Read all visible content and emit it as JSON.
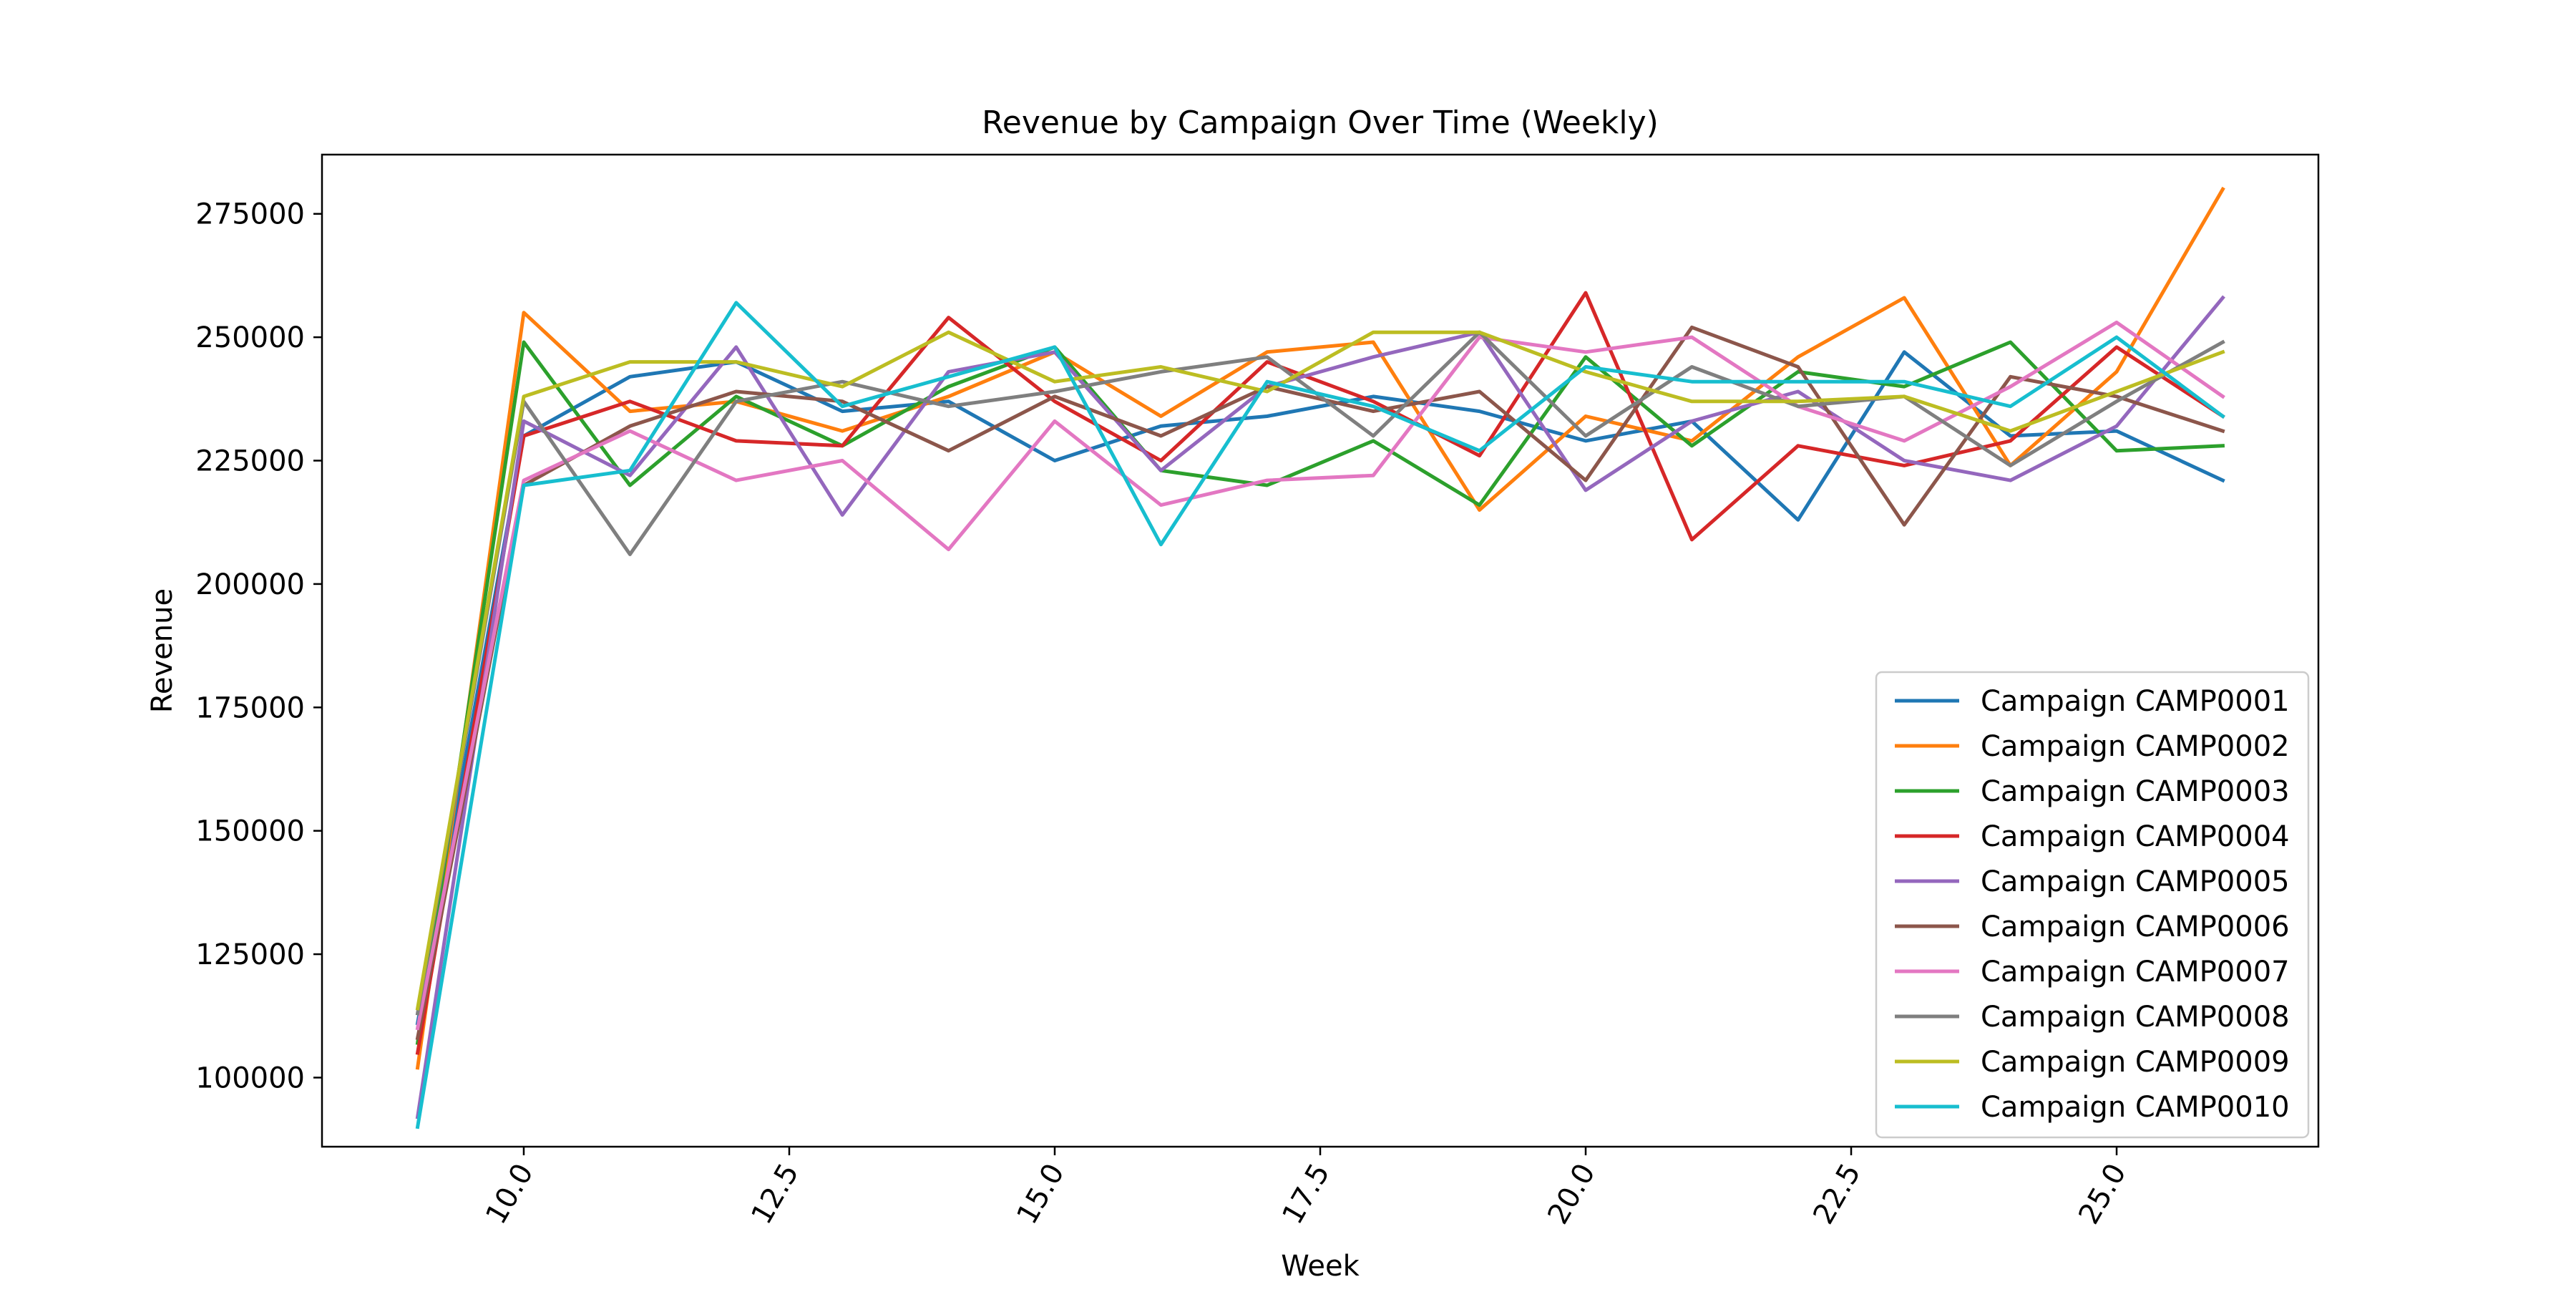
{
  "chart_data": {
    "type": "line",
    "title": "Revenue by Campaign Over Time (Weekly)",
    "xlabel": "Week",
    "ylabel": "Revenue",
    "xlim": [
      8.1,
      26.9
    ],
    "ylim": [
      86000,
      287000
    ],
    "x_ticks": [
      10.0,
      12.5,
      15.0,
      17.5,
      20.0,
      22.5,
      25.0
    ],
    "x_tick_labels": [
      "10.0",
      "12.5",
      "15.0",
      "17.5",
      "20.0",
      "22.5",
      "25.0"
    ],
    "y_ticks": [
      100000,
      125000,
      150000,
      175000,
      200000,
      225000,
      250000,
      275000
    ],
    "y_tick_labels": [
      "100000",
      "125000",
      "150000",
      "175000",
      "200000",
      "225000",
      "250000",
      "275000"
    ],
    "grid": false,
    "legend_position": "lower-right",
    "x": [
      9,
      10,
      11,
      12,
      13,
      14,
      15,
      16,
      17,
      18,
      19,
      20,
      21,
      22,
      23,
      24,
      25,
      26
    ],
    "series": [
      {
        "name": "Campaign CAMP0001",
        "color": "#1f77b4",
        "values": [
          111000,
          230000,
          242000,
          245000,
          235000,
          237000,
          225000,
          232000,
          234000,
          238000,
          235000,
          229000,
          233000,
          213000,
          247000,
          230000,
          231000,
          221000
        ]
      },
      {
        "name": "Campaign CAMP0002",
        "color": "#ff7f0e",
        "values": [
          102000,
          255000,
          235000,
          237000,
          231000,
          238000,
          247000,
          234000,
          247000,
          249000,
          215000,
          234000,
          229000,
          246000,
          258000,
          224000,
          243000,
          280000
        ]
      },
      {
        "name": "Campaign CAMP0003",
        "color": "#2ca02c",
        "values": [
          107000,
          249000,
          220000,
          238000,
          228000,
          240000,
          248000,
          223000,
          220000,
          229000,
          216000,
          246000,
          228000,
          243000,
          240000,
          249000,
          227000,
          228000
        ]
      },
      {
        "name": "Campaign CAMP0004",
        "color": "#d62728",
        "values": [
          105000,
          230000,
          237000,
          229000,
          228000,
          254000,
          237000,
          225000,
          245000,
          237000,
          226000,
          259000,
          209000,
          228000,
          224000,
          229000,
          248000,
          234000
        ]
      },
      {
        "name": "Campaign CAMP0005",
        "color": "#9467bd",
        "values": [
          92000,
          233000,
          222000,
          248000,
          214000,
          243000,
          247000,
          223000,
          240000,
          246000,
          251000,
          219000,
          233000,
          239000,
          225000,
          221000,
          232000,
          258000
        ]
      },
      {
        "name": "Campaign CAMP0006",
        "color": "#8c564b",
        "values": [
          108000,
          220000,
          232000,
          239000,
          237000,
          227000,
          238000,
          230000,
          240000,
          235000,
          239000,
          221000,
          252000,
          244000,
          212000,
          242000,
          238000,
          231000
        ]
      },
      {
        "name": "Campaign CAMP0007",
        "color": "#e377c2",
        "values": [
          110000,
          221000,
          231000,
          221000,
          225000,
          207000,
          233000,
          216000,
          221000,
          222000,
          250000,
          247000,
          250000,
          236000,
          229000,
          240000,
          253000,
          238000
        ]
      },
      {
        "name": "Campaign CAMP0008",
        "color": "#7f7f7f",
        "values": [
          113000,
          237000,
          206000,
          237000,
          241000,
          236000,
          239000,
          243000,
          246000,
          230000,
          251000,
          230000,
          244000,
          236000,
          238000,
          224000,
          237000,
          249000
        ]
      },
      {
        "name": "Campaign CAMP0009",
        "color": "#bcbd22",
        "values": [
          114000,
          238000,
          245000,
          245000,
          240000,
          251000,
          241000,
          244000,
          239000,
          251000,
          251000,
          243000,
          237000,
          237000,
          238000,
          231000,
          239000,
          247000
        ]
      },
      {
        "name": "Campaign CAMP0010",
        "color": "#17becf",
        "values": [
          90000,
          220000,
          223000,
          257000,
          236000,
          242000,
          248000,
          208000,
          241000,
          236000,
          227000,
          244000,
          241000,
          241000,
          241000,
          236000,
          250000,
          234000
        ]
      }
    ]
  }
}
